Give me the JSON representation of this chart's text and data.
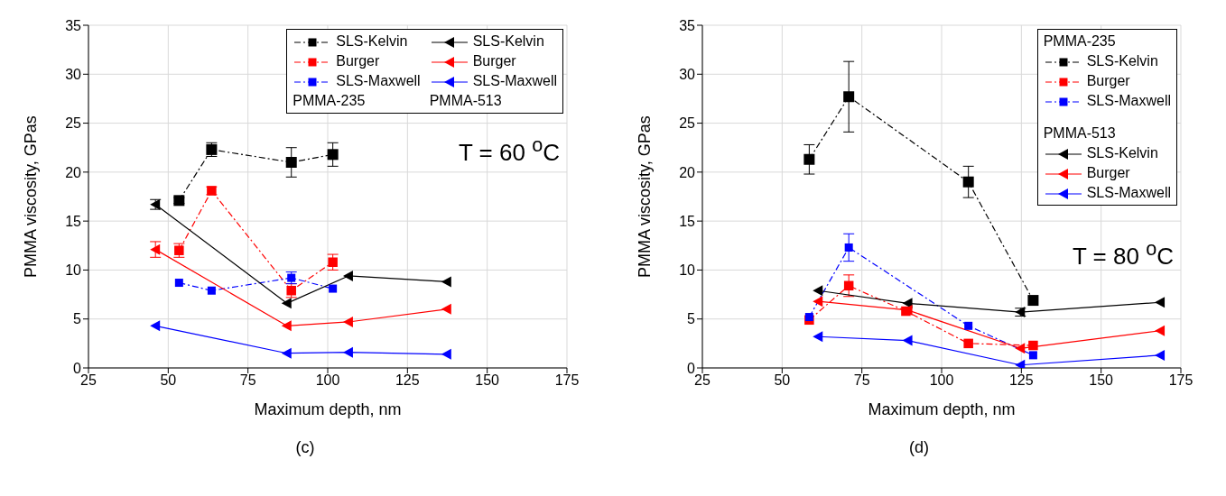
{
  "chart_data": [
    {
      "type": "line",
      "xlabel": "Maximum depth, nm",
      "ylabel": "PMMA viscosity, GPas",
      "xlim": [
        25,
        175
      ],
      "xticks": [
        25,
        50,
        75,
        100,
        125,
        150,
        175
      ],
      "ylim": [
        0,
        35
      ],
      "yticks": [
        0,
        5,
        10,
        15,
        20,
        25,
        30,
        35
      ],
      "grid": true,
      "legend": "top right",
      "annotations": [
        "T = 60 $^{o}$C",
        "PMMA-235",
        "PMMA-513",
        "(c)"
      ],
      "series": [
        {
          "name": "SLS-Kelvin",
          "color": "#000000",
          "marker": "square",
          "line_style": "dashed",
          "x": [
            53.4,
            63.6,
            88.6,
            101.6
          ],
          "values": [
            17.1,
            22.3,
            21.0,
            21.8
          ],
          "errors": [
            0.3,
            0.7,
            1.5,
            1.2
          ]
        },
        {
          "name": "Burger",
          "color": "#ff0000",
          "marker": "square",
          "line_style": "dashed",
          "x": [
            53.4,
            63.6,
            88.6,
            101.6
          ],
          "values": [
            12.0,
            18.1,
            7.9,
            10.8
          ],
          "errors": [
            0.7,
            0.4,
            0.7,
            0.8
          ]
        },
        {
          "name": "SLS-Maxwell",
          "color": "#0000ff",
          "marker": "square",
          "line_style": "dashed",
          "x": [
            53.4,
            63.6,
            88.6,
            101.6
          ],
          "values": [
            8.7,
            7.9,
            9.2,
            8.1
          ],
          "errors": [
            null,
            null,
            0.6,
            null
          ]
        },
        {
          "name": "SLS-Kelvin",
          "color": "#000000",
          "marker": "triangle",
          "line_style": "solid",
          "x": [
            46,
            87.2,
            106.5,
            137.3
          ],
          "values": [
            16.7,
            6.6,
            9.4,
            8.8
          ],
          "errors": [
            0.5,
            null,
            null,
            null
          ]
        },
        {
          "name": "Burger",
          "color": "#ff0000",
          "marker": "triangle",
          "line_style": "solid",
          "x": [
            46,
            87.2,
            106.5,
            137.3
          ],
          "values": [
            12.1,
            4.3,
            4.7,
            6.0
          ],
          "errors": [
            0.8,
            null,
            null,
            null
          ]
        },
        {
          "name": "SLS-Maxwell",
          "color": "#0000ff",
          "marker": "triangle",
          "line_style": "solid",
          "x": [
            46,
            87.2,
            106.5,
            137.3
          ],
          "values": [
            4.3,
            1.5,
            1.6,
            1.4
          ],
          "errors": [
            null,
            null,
            null,
            null
          ]
        }
      ]
    },
    {
      "type": "line",
      "xlabel": "Maximum depth, nm",
      "ylabel": "PMMA viscosity, GPas",
      "xlim": [
        25,
        175
      ],
      "xticks": [
        25,
        50,
        75,
        100,
        125,
        150,
        175
      ],
      "ylim": [
        0,
        35
      ],
      "yticks": [
        0,
        5,
        10,
        15,
        20,
        25,
        30,
        35
      ],
      "grid": true,
      "legend": "top right",
      "annotations": [
        "T = 80 $^{o}$C",
        "PMMA-235",
        "PMMA-513",
        "(d)"
      ],
      "series": [
        {
          "name": "SLS-Kelvin",
          "color": "#000000",
          "marker": "square",
          "line_style": "dashed",
          "x": [
            58.5,
            70.9,
            108.4,
            128.7
          ],
          "values": [
            21.3,
            27.7,
            19.0,
            6.9
          ],
          "errors": [
            1.5,
            3.6,
            1.6,
            null
          ]
        },
        {
          "name": "Burger",
          "color": "#ff0000",
          "marker": "square",
          "line_style": "dashed",
          "x": [
            58.5,
            70.9,
            88.8,
            108.4,
            128.7
          ],
          "values": [
            4.9,
            8.4,
            5.8,
            2.5,
            2.3
          ],
          "errors": [
            null,
            1.1,
            null,
            null,
            null
          ]
        },
        {
          "name": "SLS-Maxwell",
          "color": "#0000ff",
          "marker": "square",
          "line_style": "dashed",
          "x": [
            58.5,
            70.9,
            108.4,
            128.7
          ],
          "values": [
            5.2,
            12.3,
            4.3,
            1.3
          ],
          "errors": [
            null,
            1.4,
            null,
            null
          ]
        },
        {
          "name": "SLS-Kelvin",
          "color": "#000000",
          "marker": "triangle",
          "line_style": "solid",
          "x": [
            61.3,
            89.4,
            124.7,
            168.5
          ],
          "values": [
            7.9,
            6.6,
            5.7,
            6.7
          ],
          "errors": [
            null,
            null,
            0.4,
            null
          ]
        },
        {
          "name": "Burger",
          "color": "#ff0000",
          "marker": "triangle",
          "line_style": "solid",
          "x": [
            61.3,
            89.4,
            124.7,
            168.5
          ],
          "values": [
            6.8,
            5.9,
            2.0,
            3.8
          ],
          "errors": [
            null,
            null,
            null,
            null
          ]
        },
        {
          "name": "SLS-Maxwell",
          "color": "#0000ff",
          "marker": "triangle",
          "line_style": "solid",
          "x": [
            61.3,
            89.4,
            124.7,
            168.5
          ],
          "values": [
            3.2,
            2.8,
            0.3,
            1.3
          ],
          "errors": [
            null,
            null,
            null,
            null
          ]
        }
      ]
    }
  ]
}
